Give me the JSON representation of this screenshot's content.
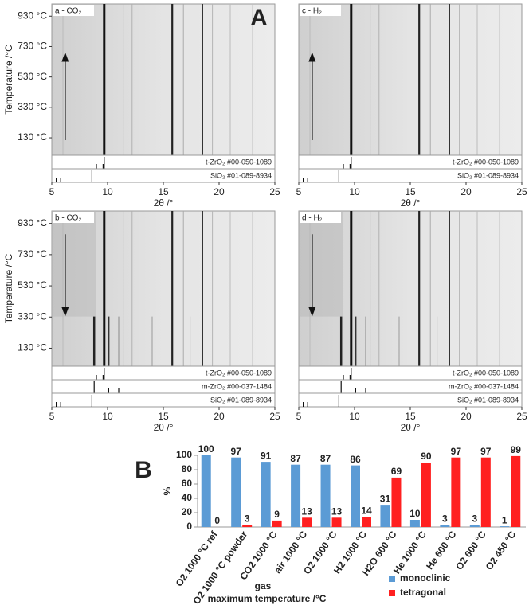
{
  "chart_data": [
    {
      "type": "heatmap",
      "panel_label": "A",
      "title": "a - CO₂",
      "x_label": "2θ /°",
      "y_label": "Temperature /°C",
      "xlim": [
        5,
        25
      ],
      "xticks": [
        5,
        10,
        15,
        20,
        25
      ],
      "ylim": [
        15,
        1010
      ],
      "yticks": [
        {
          "value": 130,
          "label": "130 °C"
        },
        {
          "value": 330,
          "label": "330 °C"
        },
        {
          "value": 530,
          "label": "530 °C"
        },
        {
          "value": 730,
          "label": "730 °C"
        },
        {
          "value": 930,
          "label": "930 °C"
        }
      ],
      "reference_patterns": [
        "t-ZrO₂ #00-050-1089",
        "SiO₂ #01-089-8934"
      ]
    },
    {
      "type": "heatmap",
      "title": "c - H₂",
      "x_label": "2θ /°",
      "xlim": [
        5,
        25
      ],
      "xticks": [
        5,
        10,
        15,
        20,
        25
      ],
      "reference_patterns": [
        "t-ZrO₂ #00-050-1089",
        "SiO₂ #01-089-8934"
      ]
    },
    {
      "type": "heatmap",
      "title": "b - CO₂",
      "x_label": "2θ /°",
      "y_label": "Temperature /°C",
      "xlim": [
        5,
        25
      ],
      "xticks": [
        5,
        10,
        15,
        20,
        25
      ],
      "ylim": [
        15,
        1010
      ],
      "yticks": [
        {
          "value": 130,
          "label": "130 °C"
        },
        {
          "value": 330,
          "label": "330 °C"
        },
        {
          "value": 530,
          "label": "530 °C"
        },
        {
          "value": 730,
          "label": "730 °C"
        },
        {
          "value": 930,
          "label": "930 °C"
        }
      ],
      "reference_patterns": [
        "t-ZrO₂ #00-050-1089",
        "m-ZrO₂ #00-037-1484",
        "SiO₂ #01-089-8934"
      ]
    },
    {
      "type": "heatmap",
      "title": "d - H₂",
      "x_label": "2θ /°",
      "xlim": [
        5,
        25
      ],
      "xticks": [
        5,
        10,
        15,
        20,
        25
      ],
      "reference_patterns": [
        "t-ZrO₂ #00-050-1089",
        "m-ZrO₂ #00-037-1484",
        "SiO₂ #01-089-8934"
      ]
    },
    {
      "type": "bar",
      "panel_label": "B",
      "y_label": "%",
      "x_label": "gas",
      "x_label_2": "maximum temperature /°C",
      "categories": [
        "O2 1000 °C ref",
        "O2 1000 °C powder",
        "CO2 1000 °C",
        "air 1000 °C",
        "O2 1000 °C",
        "H2 1000 °C",
        "H2O 600 °C",
        "He 1000 °C",
        "He 600 °C",
        "O2 600 °C",
        "O2 450 °C"
      ],
      "series": [
        {
          "name": "monoclinic",
          "color": "#5b9bd5",
          "values": [
            100,
            97,
            91,
            87,
            87,
            86,
            31,
            10,
            3,
            3,
            1
          ]
        },
        {
          "name": "tetragonal",
          "color": "#ff2020",
          "values": [
            0,
            3,
            9,
            13,
            13,
            14,
            69,
            90,
            97,
            97,
            99
          ]
        }
      ],
      "ylim": [
        0,
        100
      ],
      "yticks": [
        0,
        20,
        40,
        60,
        80,
        100
      ],
      "legend": "bottom-right"
    }
  ]
}
